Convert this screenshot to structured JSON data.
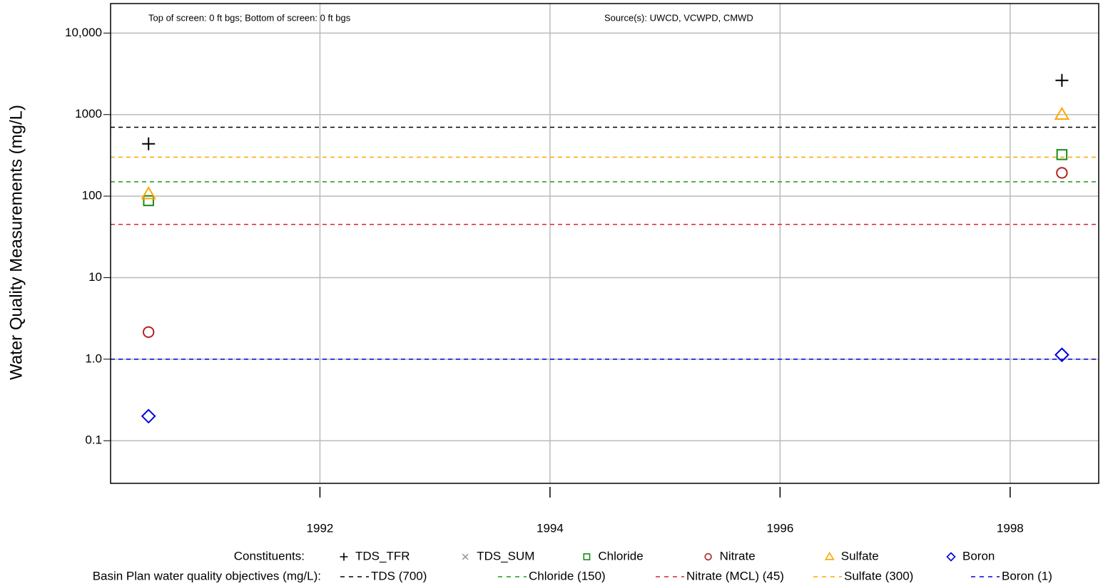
{
  "chart_data": {
    "type": "scatter",
    "ylabel": "Water Quality Measurements (mg/L)",
    "annotations": [
      "Top of screen: 0 ft bgs; Bottom of screen: 0 ft bgs",
      "Source(s): UWCD, VCWPD, CMWD"
    ],
    "x": [
      1990.51,
      1998.45
    ],
    "xlim": [
      1990.18,
      1998.77
    ],
    "xticks": [
      1992,
      1994,
      1996,
      1998
    ],
    "ylim": [
      0.03,
      23000
    ],
    "log_y": true,
    "yticks": [
      0.1,
      {
        "value": 1,
        "label": "1.0"
      },
      10,
      100,
      1000,
      {
        "value": 10000,
        "label": "10,000"
      }
    ],
    "grid": true,
    "legend_title": "Constituents:",
    "series": [
      {
        "name": "TDS_TFR",
        "marker": "plus",
        "color": "#000000",
        "values": [
          438,
          2630
        ]
      },
      {
        "name": "TDS_SUM",
        "marker": "cross",
        "color": "#999999",
        "values": [
          null,
          null
        ]
      },
      {
        "name": "Chloride",
        "marker": "square",
        "color": "#1a8a1a",
        "values": [
          88,
          323
        ]
      },
      {
        "name": "Nitrate",
        "marker": "circle",
        "color": "#b22222",
        "values": [
          2.15,
          193
        ]
      },
      {
        "name": "Sulfate",
        "marker": "triangle",
        "color": "#ffa500",
        "values": [
          106,
          1000
        ]
      },
      {
        "name": "Boron",
        "marker": "diamond",
        "color": "#0000dd",
        "values": [
          0.2,
          1.13
        ]
      }
    ],
    "objectives_title": "Basin Plan water quality objectives (mg/L):",
    "objectives": [
      {
        "label": "TDS (700)",
        "value": 700,
        "color": "#000000"
      },
      {
        "label": "Chloride (150)",
        "value": 150,
        "color": "#1a9a1a"
      },
      {
        "label": "Nitrate (MCL) (45)",
        "value": 45,
        "color": "#d62728"
      },
      {
        "label": "Sulfate (300)",
        "value": 300,
        "color": "#ffa500"
      },
      {
        "label": "Boron (1)",
        "value": 1,
        "color": "#0000dd"
      }
    ]
  }
}
